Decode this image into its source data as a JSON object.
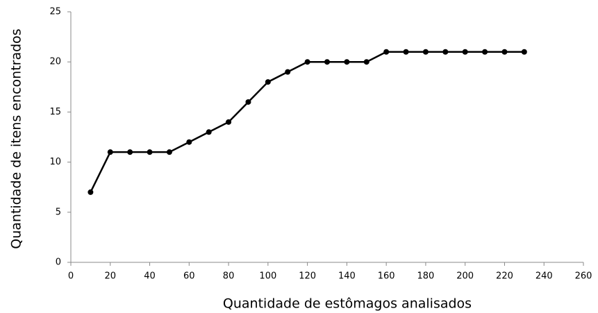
{
  "chart_data": {
    "type": "line",
    "x_label": "Quantidade de estômagos analisados",
    "y_label": "Quantidade de itens encontrados",
    "x": [
      10,
      20,
      30,
      40,
      50,
      60,
      70,
      80,
      90,
      100,
      110,
      120,
      130,
      140,
      150,
      160,
      170,
      180,
      190,
      200,
      210,
      220,
      230
    ],
    "series": [
      {
        "color": "#000000",
        "values": [
          7,
          11,
          11,
          11,
          11,
          12,
          13,
          14,
          16,
          18,
          19,
          20,
          20,
          20,
          20,
          21,
          21,
          21,
          21,
          21,
          21,
          21,
          21
        ]
      }
    ],
    "xlim": [
      0,
      260
    ],
    "xticks": [
      0,
      20,
      40,
      60,
      80,
      100,
      120,
      140,
      160,
      180,
      200,
      220,
      240,
      260
    ],
    "ylim": [
      0,
      25
    ],
    "yticks": [
      0,
      5,
      10,
      15,
      20,
      25
    ],
    "grid": false
  }
}
